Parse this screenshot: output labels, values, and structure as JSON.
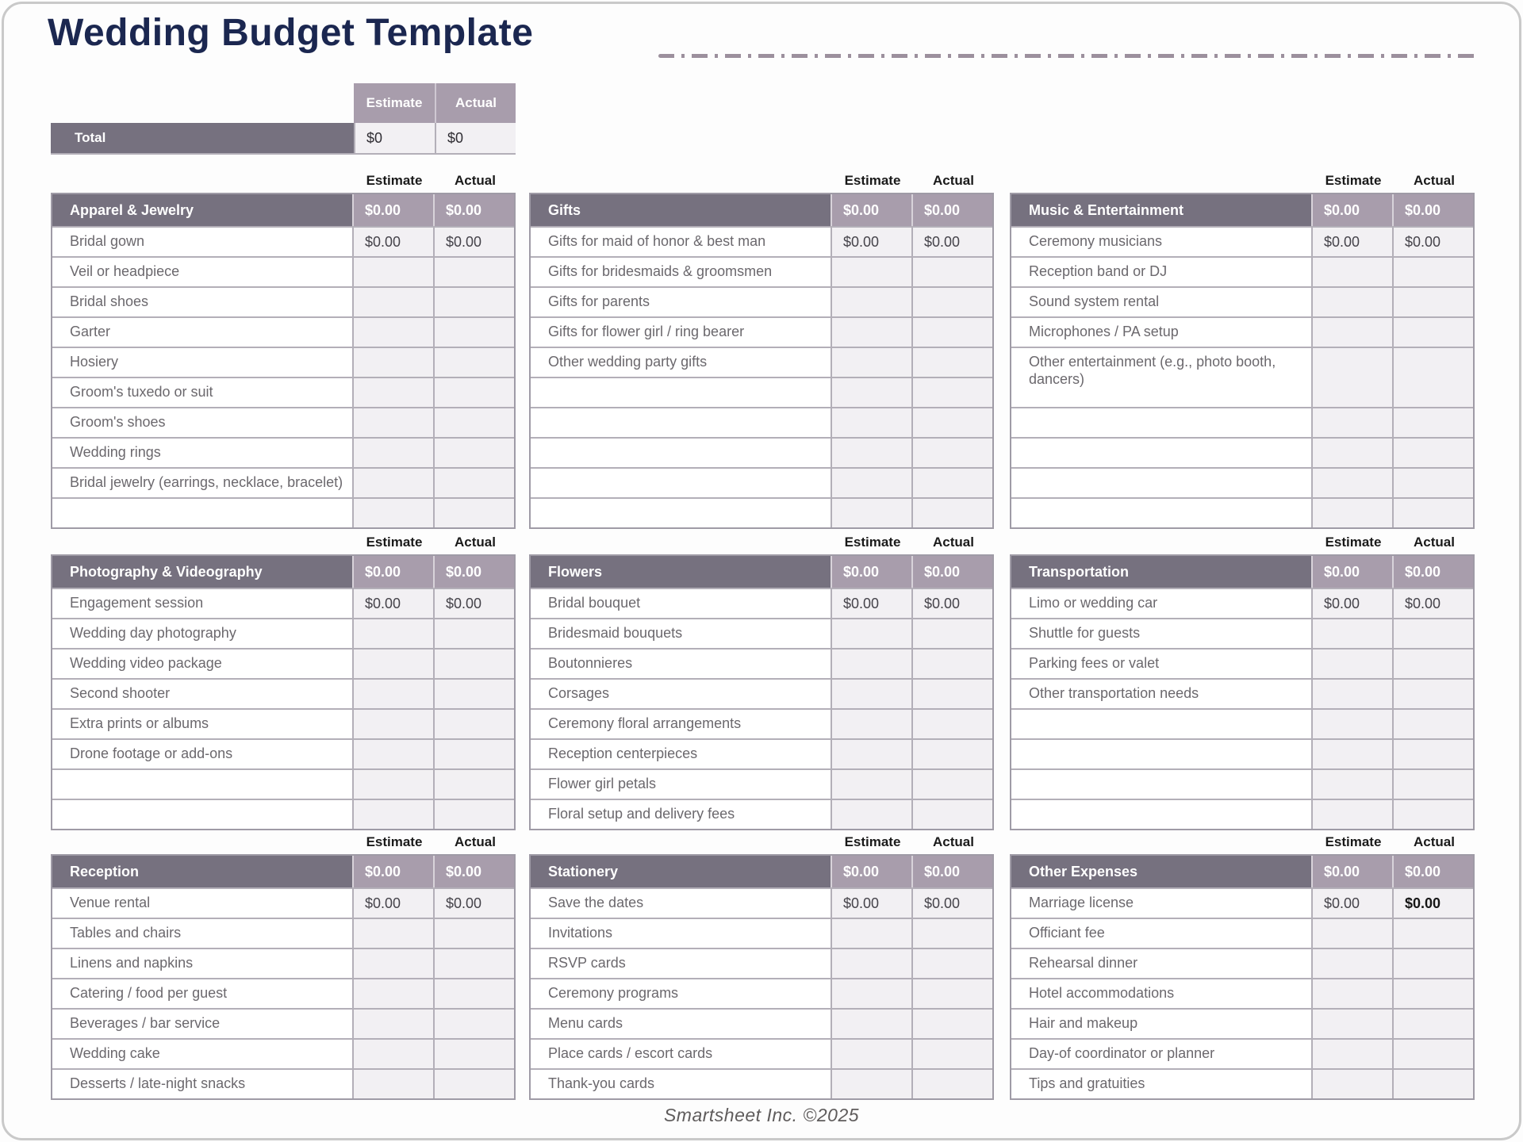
{
  "header": {
    "title": "Wedding Budget Template"
  },
  "column_labels": {
    "estimate": "Estimate",
    "actual": "Actual"
  },
  "total": {
    "label": "Total",
    "estimate": "$0",
    "actual": "$0"
  },
  "tables": [
    {
      "name": "Apparel & Jewelry",
      "estimate_total": "$0.00",
      "actual_total": "$0.00",
      "rows": [
        {
          "label": "Bridal gown",
          "estimate": "$0.00",
          "actual": "$0.00"
        },
        {
          "label": "Veil or headpiece"
        },
        {
          "label": "Bridal shoes"
        },
        {
          "label": "Garter"
        },
        {
          "label": "Hosiery"
        },
        {
          "label": "Groom's tuxedo or suit"
        },
        {
          "label": "Groom's shoes"
        },
        {
          "label": "Wedding rings"
        },
        {
          "label": "Bridal jewelry (earrings, necklace, bracelet)"
        },
        {
          "label": ""
        }
      ]
    },
    {
      "name": "Gifts",
      "estimate_total": "$0.00",
      "actual_total": "$0.00",
      "rows": [
        {
          "label": "Gifts for maid of honor & best man",
          "estimate": "$0.00",
          "actual": "$0.00"
        },
        {
          "label": "Gifts for bridesmaids & groomsmen"
        },
        {
          "label": "Gifts for parents"
        },
        {
          "label": "Gifts for flower girl / ring bearer"
        },
        {
          "label": "Other wedding party gifts"
        },
        {
          "label": ""
        },
        {
          "label": ""
        },
        {
          "label": ""
        },
        {
          "label": ""
        },
        {
          "label": ""
        }
      ]
    },
    {
      "name": "Music & Entertainment",
      "estimate_total": "$0.00",
      "actual_total": "$0.00",
      "rows": [
        {
          "label": "Ceremony musicians",
          "estimate": "$0.00",
          "actual": "$0.00"
        },
        {
          "label": "Reception band or DJ"
        },
        {
          "label": "Sound system rental"
        },
        {
          "label": "Microphones / PA setup"
        },
        {
          "label": "Other entertainment (e.g., photo booth, dancers)",
          "tall": true
        },
        {
          "label": ""
        },
        {
          "label": ""
        },
        {
          "label": ""
        },
        {
          "label": ""
        }
      ]
    },
    {
      "name": "Photography & Videography",
      "estimate_total": "$0.00",
      "actual_total": "$0.00",
      "rows": [
        {
          "label": "Engagement session",
          "estimate": "$0.00",
          "actual": "$0.00"
        },
        {
          "label": "Wedding day photography"
        },
        {
          "label": "Wedding video package"
        },
        {
          "label": "Second shooter"
        },
        {
          "label": "Extra prints or albums"
        },
        {
          "label": "Drone footage or add-ons"
        },
        {
          "label": ""
        },
        {
          "label": ""
        }
      ]
    },
    {
      "name": "Flowers",
      "estimate_total": "$0.00",
      "actual_total": "$0.00",
      "rows": [
        {
          "label": "Bridal bouquet",
          "estimate": "$0.00",
          "actual": "$0.00"
        },
        {
          "label": "Bridesmaid bouquets"
        },
        {
          "label": "Boutonnieres"
        },
        {
          "label": "Corsages"
        },
        {
          "label": "Ceremony floral arrangements"
        },
        {
          "label": "Reception centerpieces"
        },
        {
          "label": "Flower girl petals"
        },
        {
          "label": "Floral setup and delivery fees"
        }
      ]
    },
    {
      "name": "Transportation",
      "estimate_total": "$0.00",
      "actual_total": "$0.00",
      "rows": [
        {
          "label": "Limo or wedding car",
          "estimate": "$0.00",
          "actual": "$0.00"
        },
        {
          "label": "Shuttle for guests"
        },
        {
          "label": "Parking fees or valet"
        },
        {
          "label": "Other transportation needs"
        },
        {
          "label": ""
        },
        {
          "label": ""
        },
        {
          "label": ""
        },
        {
          "label": ""
        }
      ]
    },
    {
      "name": "Reception",
      "estimate_total": "$0.00",
      "actual_total": "$0.00",
      "rows": [
        {
          "label": "Venue rental",
          "estimate": "$0.00",
          "actual": "$0.00"
        },
        {
          "label": "Tables and chairs"
        },
        {
          "label": "Linens and napkins"
        },
        {
          "label": "Catering / food per guest"
        },
        {
          "label": "Beverages / bar service"
        },
        {
          "label": "Wedding cake"
        },
        {
          "label": "Desserts / late-night snacks"
        }
      ]
    },
    {
      "name": "Stationery",
      "estimate_total": "$0.00",
      "actual_total": "$0.00",
      "rows": [
        {
          "label": "Save the dates",
          "estimate": "$0.00",
          "actual": "$0.00"
        },
        {
          "label": "Invitations"
        },
        {
          "label": "RSVP cards"
        },
        {
          "label": "Ceremony programs"
        },
        {
          "label": "Menu cards"
        },
        {
          "label": "Place cards / escort cards"
        },
        {
          "label": "Thank-you cards"
        }
      ]
    },
    {
      "name": "Other Expenses",
      "estimate_total": "$0.00",
      "actual_total": "$0.00",
      "rows": [
        {
          "label": "Marriage license",
          "estimate": "$0.00",
          "actual": "$0.00",
          "actual_bold": true
        },
        {
          "label": "Officiant fee"
        },
        {
          "label": "Rehearsal dinner"
        },
        {
          "label": "Hotel accommodations"
        },
        {
          "label": "Hair and makeup"
        },
        {
          "label": "Day-of coordinator or planner"
        },
        {
          "label": "Tips and gratuities"
        }
      ]
    }
  ],
  "footer": {
    "credit": "Smartsheet Inc. ©2025"
  },
  "colors": {
    "title_navy": "#1b2750",
    "header_gray": "#76717f",
    "mauve": "#a89dac",
    "cell_light": "#f2f0f3",
    "border_gray": "#b3afb8",
    "table_outline": "#9f9ba6",
    "item_text": "#6b686d",
    "value_text": "#45434a",
    "label_text": "#1a1a1a",
    "dash": "#9c909d",
    "frame": "#c9c9c9",
    "footer_text": "#5f5c5c"
  }
}
